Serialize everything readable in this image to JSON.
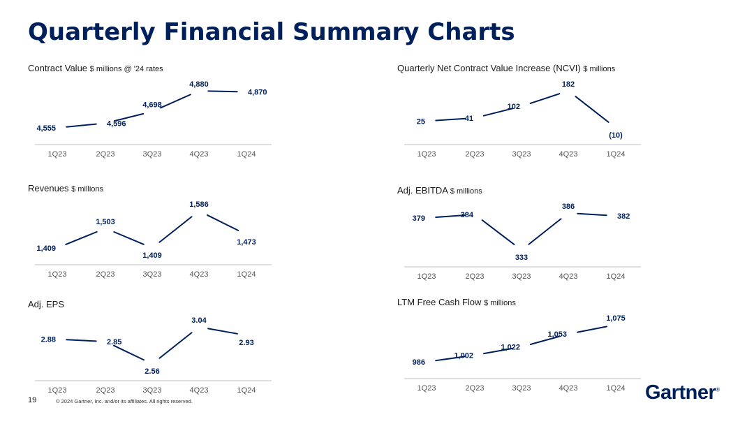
{
  "title": "Quarterly Financial Summary Charts",
  "footer": {
    "page_number": "19",
    "copyright": "© 2024 Gartner, Inc. and/or its affiliates. All rights reserved.",
    "logo": "Gartner",
    "logo_mark": "®"
  },
  "colors": {
    "title": "#00205b",
    "line": "#00205b",
    "axis": "#bfbfbf",
    "tick": "#555555"
  },
  "chart_data": [
    {
      "id": "contract-value",
      "type": "line",
      "title": "Contract Value",
      "unit": "$ millions @ '24 rates",
      "categories": [
        "1Q23",
        "2Q23",
        "3Q23",
        "4Q23",
        "1Q24"
      ],
      "values": [
        4555,
        4596,
        4698,
        4880,
        4870
      ],
      "labels": [
        "4,555",
        "4,596",
        "4,698",
        "4,880",
        "4,870"
      ],
      "label_side": [
        "left",
        "right",
        "above",
        "above",
        "right"
      ]
    },
    {
      "id": "ncvi",
      "type": "line",
      "title": "Quarterly Net Contract Value Increase (NCVI)",
      "unit": "$ millions",
      "categories": [
        "1Q23",
        "2Q23",
        "3Q23",
        "4Q23",
        "1Q24"
      ],
      "values": [
        25,
        41,
        102,
        182,
        -10
      ],
      "labels": [
        "25",
        "41",
        "102",
        "182",
        "(10)"
      ],
      "label_side": [
        "left",
        "left",
        "left",
        "above",
        "below"
      ]
    },
    {
      "id": "revenues",
      "type": "line",
      "title": "Revenues",
      "unit": "$ millions",
      "categories": [
        "1Q23",
        "2Q23",
        "3Q23",
        "4Q23",
        "1Q24"
      ],
      "values": [
        1409,
        1503,
        1409,
        1586,
        1473
      ],
      "labels": [
        "1,409",
        "1,503",
        "1,409",
        "1,586",
        "1,473"
      ],
      "label_side": [
        "left",
        "above",
        "below",
        "above",
        "below"
      ]
    },
    {
      "id": "adj-ebitda",
      "type": "line",
      "title": "Adj. EBITDA",
      "unit": "$ millions",
      "categories": [
        "1Q23",
        "2Q23",
        "3Q23",
        "4Q23",
        "1Q24"
      ],
      "values": [
        379,
        384,
        333,
        386,
        382
      ],
      "labels": [
        "379",
        "384",
        "333",
        "386",
        "382"
      ],
      "label_side": [
        "left",
        "left",
        "below",
        "above",
        "right"
      ]
    },
    {
      "id": "adj-eps",
      "type": "line",
      "title": "Adj. EPS",
      "unit": "",
      "categories": [
        "1Q23",
        "2Q23",
        "3Q23",
        "4Q23",
        "1Q24"
      ],
      "values": [
        2.88,
        2.85,
        2.56,
        3.04,
        2.93
      ],
      "labels": [
        "2.88",
        "2.85",
        "2.56",
        "3.04",
        "2.93"
      ],
      "label_side": [
        "left",
        "right",
        "below",
        "above",
        "below"
      ]
    },
    {
      "id": "ltm-fcf",
      "type": "line",
      "title": "LTM Free Cash Flow",
      "unit": "$ millions",
      "categories": [
        "1Q23",
        "2Q23",
        "3Q23",
        "4Q23",
        "1Q24"
      ],
      "values": [
        986,
        1002,
        1022,
        1053,
        1075
      ],
      "labels": [
        "986",
        "1,002",
        "1,022",
        "1,053",
        "1,075"
      ],
      "label_side": [
        "left",
        "left",
        "left",
        "left",
        "above"
      ]
    }
  ]
}
